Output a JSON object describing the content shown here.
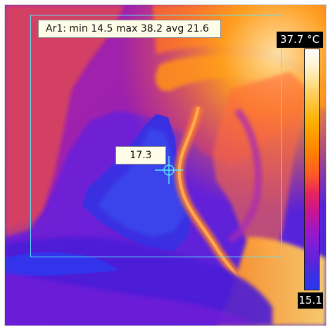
{
  "roi": {
    "label": "Ar1: min 14.5 max 38.2 avg 21.6"
  },
  "spot": {
    "value": "17.3"
  },
  "scale": {
    "max_label": "37.7 °C",
    "min_label": "15.1"
  },
  "colors": {
    "roi_outline": "#58e8ff",
    "crosshair": "#58e8ff",
    "label_background": "#fffde8"
  }
}
